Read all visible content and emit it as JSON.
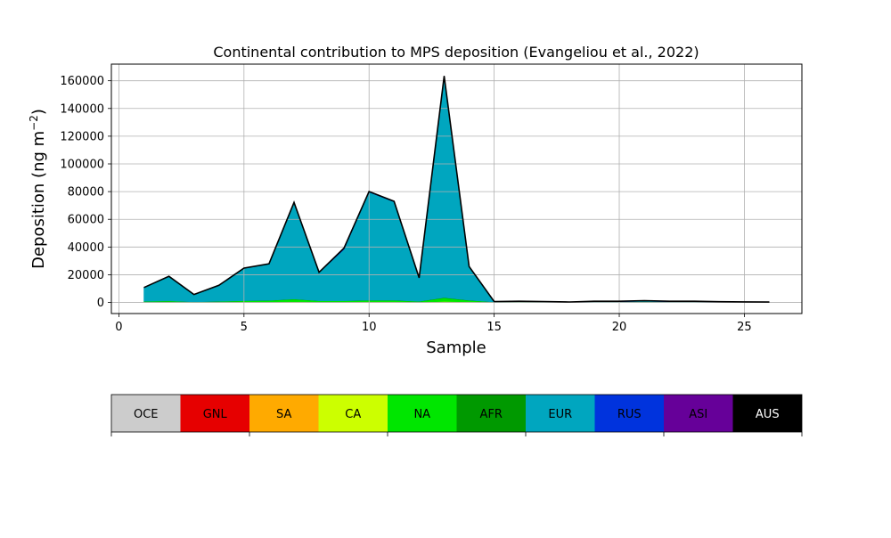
{
  "chart_data": {
    "type": "area",
    "stacked": true,
    "title": "Continental contribution to MPS deposition (Evangeliou et al., 2022)",
    "xlabel": "Sample",
    "ylabel_main": "Deposition (ng m",
    "ylabel_sup": "−2",
    "ylabel_close": ")",
    "xlim": [
      -0.3,
      27.3
    ],
    "ylim": [
      -8000,
      172000
    ],
    "xticks": [
      0,
      5,
      10,
      15,
      20,
      25
    ],
    "yticks": [
      0,
      20000,
      40000,
      60000,
      80000,
      100000,
      120000,
      140000,
      160000
    ],
    "grid": true,
    "x": [
      1,
      2,
      3,
      4,
      5,
      6,
      7,
      8,
      9,
      10,
      11,
      12,
      13,
      14,
      15,
      16,
      17,
      18,
      19,
      20,
      21,
      22,
      23,
      24,
      25,
      26
    ],
    "series": [
      {
        "name": "OCE",
        "color": "#cccccc",
        "values": [
          0,
          0,
          0,
          0,
          0,
          0,
          0,
          0,
          0,
          0,
          0,
          0,
          0,
          0,
          0,
          0,
          0,
          0,
          0,
          0,
          0,
          0,
          0,
          0,
          0,
          0
        ]
      },
      {
        "name": "GNL",
        "color": "#e60000",
        "values": [
          0,
          0,
          0,
          0,
          0,
          0,
          0,
          0,
          0,
          0,
          0,
          0,
          0,
          0,
          0,
          0,
          0,
          0,
          0,
          0,
          0,
          0,
          0,
          0,
          0,
          0
        ]
      },
      {
        "name": "SA",
        "color": "#ffaa00",
        "values": [
          0,
          0,
          0,
          0,
          0,
          0,
          0,
          0,
          0,
          0,
          0,
          0,
          0,
          0,
          0,
          0,
          0,
          0,
          0,
          0,
          0,
          0,
          0,
          0,
          0,
          0
        ]
      },
      {
        "name": "CA",
        "color": "#ccff00",
        "values": [
          200,
          200,
          100,
          200,
          300,
          300,
          500,
          300,
          300,
          400,
          400,
          200,
          700,
          400,
          100,
          100,
          100,
          50,
          50,
          50,
          100,
          50,
          50,
          50,
          50,
          50
        ]
      },
      {
        "name": "NA",
        "color": "#00e600",
        "values": [
          500,
          800,
          300,
          500,
          800,
          1000,
          1800,
          800,
          800,
          1000,
          1000,
          500,
          2500,
          1000,
          200,
          300,
          200,
          100,
          200,
          200,
          300,
          200,
          200,
          100,
          100,
          100
        ]
      },
      {
        "name": "AFR",
        "color": "#009900",
        "values": [
          100,
          100,
          50,
          100,
          150,
          150,
          200,
          100,
          100,
          150,
          150,
          100,
          300,
          150,
          50,
          50,
          50,
          20,
          20,
          20,
          50,
          20,
          20,
          20,
          20,
          20
        ]
      },
      {
        "name": "EUR",
        "color": "#00a6bf",
        "values": [
          9800,
          17600,
          5200,
          11400,
          23300,
          26200,
          69400,
          20300,
          37000,
          78000,
          71000,
          16700,
          159600,
          24200,
          200,
          300,
          200,
          100,
          300,
          300,
          500,
          300,
          300,
          200,
          100,
          50
        ]
      },
      {
        "name": "RUS",
        "color": "#0033dd",
        "values": [
          100,
          100,
          50,
          100,
          200,
          200,
          300,
          200,
          1000,
          500,
          400,
          200,
          300,
          150,
          50,
          100,
          100,
          50,
          200,
          200,
          200,
          200,
          200,
          100,
          100,
          50
        ]
      },
      {
        "name": "ASI",
        "color": "#660099",
        "values": [
          50,
          50,
          30,
          50,
          50,
          50,
          50,
          50,
          50,
          50,
          50,
          50,
          50,
          50,
          50,
          50,
          50,
          50,
          100,
          100,
          100,
          100,
          100,
          50,
          50,
          30
        ]
      },
      {
        "name": "AUS",
        "color": "#000000",
        "values": [
          0,
          0,
          0,
          0,
          0,
          0,
          0,
          0,
          0,
          0,
          0,
          0,
          0,
          0,
          0,
          0,
          0,
          0,
          0,
          0,
          0,
          0,
          0,
          0,
          0,
          0
        ]
      }
    ]
  }
}
